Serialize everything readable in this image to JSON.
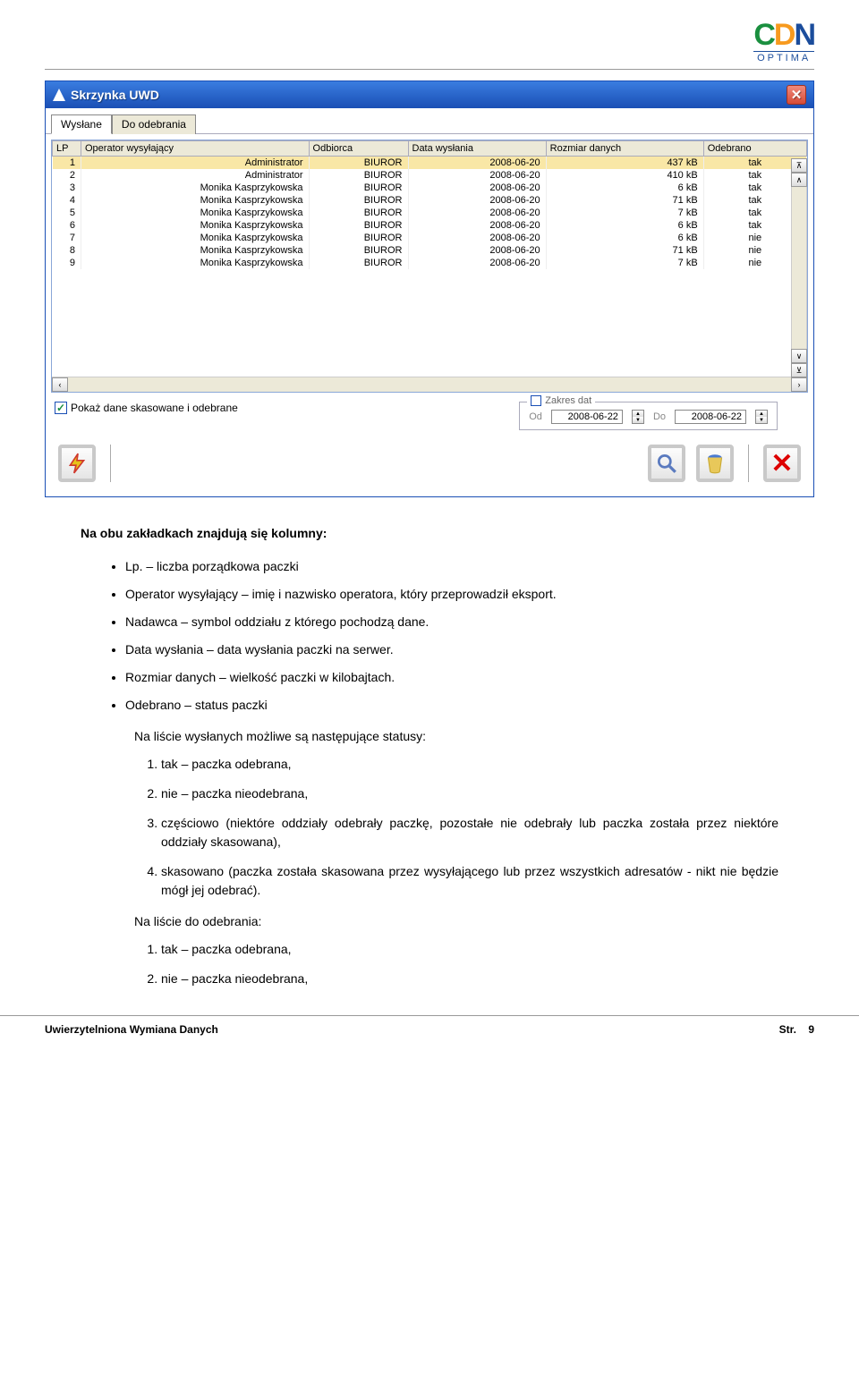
{
  "logo": {
    "part1": "C",
    "part2": "D",
    "part3": "N",
    "sub": "OPTIMA"
  },
  "window": {
    "title": "Skrzynka UWD",
    "tabs": {
      "active": "Wysłane",
      "inactive": "Do odebrania"
    },
    "columns": [
      "LP",
      "Operator wysyłający",
      "Odbiorca",
      "Data wysłania",
      "Rozmiar danych",
      "Odebrano"
    ],
    "rows": [
      {
        "lp": "1",
        "op": "Administrator",
        "odb": "BIUROR",
        "data": "2008-06-20",
        "roz": "437 kB",
        "ode": "tak"
      },
      {
        "lp": "2",
        "op": "Administrator",
        "odb": "BIUROR",
        "data": "2008-06-20",
        "roz": "410 kB",
        "ode": "tak"
      },
      {
        "lp": "3",
        "op": "Monika Kasprzykowska",
        "odb": "BIUROR",
        "data": "2008-06-20",
        "roz": "6 kB",
        "ode": "tak"
      },
      {
        "lp": "4",
        "op": "Monika Kasprzykowska",
        "odb": "BIUROR",
        "data": "2008-06-20",
        "roz": "71 kB",
        "ode": "tak"
      },
      {
        "lp": "5",
        "op": "Monika Kasprzykowska",
        "odb": "BIUROR",
        "data": "2008-06-20",
        "roz": "7 kB",
        "ode": "tak"
      },
      {
        "lp": "6",
        "op": "Monika Kasprzykowska",
        "odb": "BIUROR",
        "data": "2008-06-20",
        "roz": "6 kB",
        "ode": "tak"
      },
      {
        "lp": "7",
        "op": "Monika Kasprzykowska",
        "odb": "BIUROR",
        "data": "2008-06-20",
        "roz": "6 kB",
        "ode": "nie"
      },
      {
        "lp": "8",
        "op": "Monika Kasprzykowska",
        "odb": "BIUROR",
        "data": "2008-06-20",
        "roz": "71 kB",
        "ode": "nie"
      },
      {
        "lp": "9",
        "op": "Monika Kasprzykowska",
        "odb": "BIUROR",
        "data": "2008-06-20",
        "roz": "7 kB",
        "ode": "nie"
      }
    ],
    "checkbox_label": "Pokaż dane skasowane i odebrane",
    "daterange": {
      "legend": "Zakres dat",
      "od_label": "Od",
      "od_value": "2008-06-22",
      "do_label": "Do",
      "do_value": "2008-06-22"
    }
  },
  "text": {
    "intro": "Na obu zakładkach znajdują się kolumny:",
    "bullets": [
      "Lp. – liczba porządkowa paczki",
      "Operator wysyłający – imię i nazwisko operatora, który przeprowadził eksport.",
      "Nadawca – symbol oddziału z którego pochodzą dane.",
      "Data wysłania – data wysłania paczki na serwer.",
      "Rozmiar danych – wielkość paczki w kilobajtach.",
      "Odebrano – status paczki"
    ],
    "sublabel": "Na liście wysłanych możliwe są następujące statusy:",
    "statuses": [
      "tak – paczka odebrana,",
      "nie – paczka nieodebrana,",
      "częściowo (niektóre oddziały odebrały paczkę, pozostałe nie odebrały lub paczka została przez niektóre oddziały skasowana),",
      "skasowano (paczka została skasowana przez wysyłającego lub przez wszystkich adresatów - nikt nie będzie mógł jej odebrać)."
    ],
    "sublabel2": "Na liście do odebrania:",
    "statuses2": [
      "tak – paczka odebrana,",
      "nie – paczka nieodebrana,"
    ]
  },
  "footer": {
    "left": "Uwierzytelniona Wymiana Danych",
    "right_label": "Str.",
    "right_num": "9"
  }
}
